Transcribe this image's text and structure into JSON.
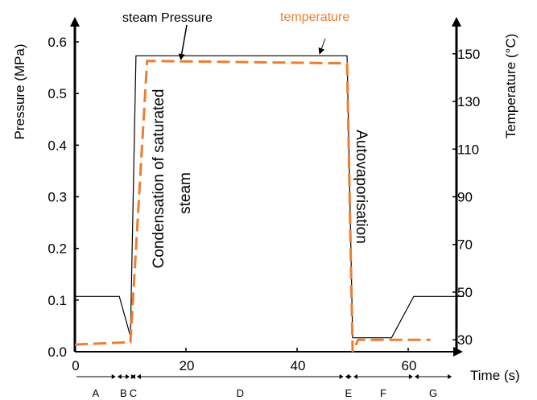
{
  "chart_data": {
    "type": "line",
    "xlabel": "Time (s)",
    "ylabel_left": "Pressure (MPa)",
    "ylabel_right": "Temperature (°C)",
    "xlim": [
      0,
      70
    ],
    "ylim_left": [
      0,
      0.6
    ],
    "ylim_right": [
      25,
      155
    ],
    "x_ticks": [
      {
        "v": 0,
        "label": "0"
      },
      {
        "v": 20,
        "label": "20"
      },
      {
        "v": 40,
        "label": "40"
      },
      {
        "v": 60,
        "label": "60"
      }
    ],
    "y_left_ticks": [
      {
        "v": 0.0,
        "label": "0.0"
      },
      {
        "v": 0.1,
        "label": "0.1"
      },
      {
        "v": 0.2,
        "label": "0.2"
      },
      {
        "v": 0.3,
        "label": "0.3"
      },
      {
        "v": 0.4,
        "label": "0.4"
      },
      {
        "v": 0.5,
        "label": "0.5"
      },
      {
        "v": 0.6,
        "label": "0.6"
      }
    ],
    "y_right_ticks": [
      {
        "v": 30,
        "label": "30"
      },
      {
        "v": 50,
        "label": "50"
      },
      {
        "v": 70,
        "label": "70"
      },
      {
        "v": 90,
        "label": "90"
      },
      {
        "v": 110,
        "label": "110"
      },
      {
        "v": 130,
        "label": "130"
      },
      {
        "v": 150,
        "label": "150"
      }
    ],
    "series": [
      {
        "name": "steam Pressure",
        "axis": "left",
        "color": "#000000",
        "style": "solid",
        "x": [
          0,
          8,
          10,
          11,
          49,
          50,
          57,
          61,
          70
        ],
        "y": [
          0.107,
          0.107,
          0.03,
          0.573,
          0.573,
          0.027,
          0.027,
          0.107,
          0.107
        ]
      },
      {
        "name": "temperature",
        "axis": "right",
        "color": "#ED7D31",
        "style": "dashed",
        "x": [
          0,
          10,
          13,
          49,
          50,
          51,
          64
        ],
        "y": [
          28,
          29,
          147,
          146,
          25,
          30,
          30
        ]
      }
    ],
    "phases": [
      {
        "label": "A",
        "x0": 0,
        "x1": 7.5
      },
      {
        "label": "B",
        "x0": 7.5,
        "x1": 10
      },
      {
        "label": "C",
        "x0": 10,
        "x1": 11
      },
      {
        "label": "D",
        "x0": 11,
        "x1": 48.5
      },
      {
        "label": "E",
        "x0": 48.5,
        "x1": 50
      },
      {
        "label": "F",
        "x0": 50,
        "x1": 61
      },
      {
        "label": "G",
        "x0": 61,
        "x1": 68
      }
    ],
    "annotations": {
      "steam_pressure": "steam Pressure",
      "temperature": "temperature",
      "condensation_line1": "Condensation of saturated",
      "condensation_line2": "steam",
      "autovaporisation": "Autovaporisation"
    },
    "grid": false,
    "legend": "none"
  }
}
